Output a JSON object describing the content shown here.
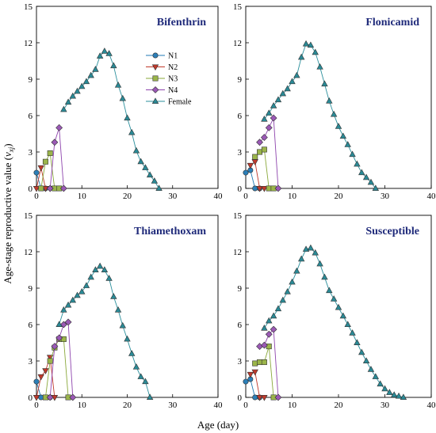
{
  "y_axis_title": {
    "prefix": "Age-stage reproductive value (",
    "var": "v",
    "sub": "xj",
    "suffix": ")"
  },
  "x_axis_title": "Age (day)",
  "legend": [
    "N1",
    "N2",
    "N3",
    "N4",
    "Female"
  ],
  "colors": {
    "N1": "#1f78b4",
    "N2": "#c0392b",
    "N3": "#8aa83a",
    "N4": "#8e44ad",
    "Female": "#2b8f9c",
    "N1_fill": "#2c7fb8",
    "N2_fill": "#c0392b",
    "N3_fill": "#9bb54a",
    "N4_fill": "#9b59b6",
    "Female_fill": "#2a8a96"
  },
  "chart_data": [
    {
      "type": "line",
      "title": "Bifenthrin",
      "xlim": [
        0,
        40
      ],
      "ylim": [
        0,
        15
      ],
      "xticks": [
        0,
        10,
        20,
        30,
        40
      ],
      "yticks": [
        0,
        3,
        6,
        9,
        12,
        15
      ],
      "series": [
        {
          "name": "N1",
          "marker": "circle",
          "points": [
            [
              0,
              1.3
            ],
            [
              1,
              0
            ],
            [
              2,
              0
            ]
          ]
        },
        {
          "name": "N2",
          "marker": "triangle-down",
          "points": [
            [
              0,
              0
            ],
            [
              1,
              1.7
            ],
            [
              2,
              0
            ],
            [
              3,
              0
            ]
          ]
        },
        {
          "name": "N3",
          "marker": "square",
          "points": [
            [
              1,
              0
            ],
            [
              2,
              2.2
            ],
            [
              3,
              2.9
            ],
            [
              4,
              0
            ],
            [
              5,
              0
            ]
          ]
        },
        {
          "name": "N4",
          "marker": "diamond",
          "points": [
            [
              3,
              0
            ],
            [
              4,
              3.8
            ],
            [
              5,
              5.0
            ],
            [
              6,
              0
            ]
          ]
        },
        {
          "name": "Female",
          "marker": "triangle-up",
          "points": [
            [
              6,
              6.5
            ],
            [
              7,
              7.1
            ],
            [
              8,
              7.6
            ],
            [
              9,
              8.0
            ],
            [
              10,
              8.4
            ],
            [
              11,
              8.8
            ],
            [
              12,
              9.3
            ],
            [
              13,
              9.8
            ],
            [
              14,
              10.9
            ],
            [
              15,
              11.3
            ],
            [
              16,
              11.1
            ],
            [
              17,
              10.1
            ],
            [
              18,
              8.5
            ],
            [
              19,
              7.4
            ],
            [
              20,
              5.8
            ],
            [
              21,
              4.6
            ],
            [
              22,
              3.1
            ],
            [
              23,
              2.2
            ],
            [
              24,
              1.7
            ],
            [
              25,
              1.1
            ],
            [
              26,
              0.6
            ],
            [
              27,
              0
            ]
          ]
        }
      ]
    },
    {
      "type": "line",
      "title": "Flonicamid",
      "xlim": [
        0,
        40
      ],
      "ylim": [
        0,
        15
      ],
      "xticks": [
        0,
        10,
        20,
        30,
        40
      ],
      "yticks": [
        0,
        3,
        6,
        9,
        12,
        15
      ],
      "series": [
        {
          "name": "N1",
          "marker": "circle",
          "points": [
            [
              0,
              1.3
            ],
            [
              1,
              1.5
            ],
            [
              2,
              0
            ],
            [
              3,
              0
            ]
          ]
        },
        {
          "name": "N2",
          "marker": "triangle-down",
          "points": [
            [
              1,
              1.9
            ],
            [
              2,
              2.2
            ],
            [
              3,
              0
            ],
            [
              4,
              0
            ]
          ]
        },
        {
          "name": "N3",
          "marker": "square",
          "points": [
            [
              2,
              2.6
            ],
            [
              3,
              3.0
            ],
            [
              4,
              3.2
            ],
            [
              5,
              0
            ],
            [
              6,
              0
            ]
          ]
        },
        {
          "name": "N4",
          "marker": "diamond",
          "points": [
            [
              3,
              3.8
            ],
            [
              4,
              4.2
            ],
            [
              5,
              5.0
            ],
            [
              6,
              5.8
            ],
            [
              7,
              0
            ]
          ]
        },
        {
          "name": "Female",
          "marker": "triangle-up",
          "points": [
            [
              4,
              5.7
            ],
            [
              5,
              6.2
            ],
            [
              6,
              6.8
            ],
            [
              7,
              7.3
            ],
            [
              8,
              7.8
            ],
            [
              9,
              8.2
            ],
            [
              10,
              8.8
            ],
            [
              11,
              9.3
            ],
            [
              12,
              10.8
            ],
            [
              13,
              11.9
            ],
            [
              14,
              11.8
            ],
            [
              15,
              11.2
            ],
            [
              16,
              10.0
            ],
            [
              17,
              8.6
            ],
            [
              18,
              7.2
            ],
            [
              19,
              6.1
            ],
            [
              20,
              5.1
            ],
            [
              21,
              4.3
            ],
            [
              22,
              3.6
            ],
            [
              23,
              2.8
            ],
            [
              24,
              2.0
            ],
            [
              25,
              1.3
            ],
            [
              26,
              0.9
            ],
            [
              27,
              0.5
            ],
            [
              28,
              0
            ]
          ]
        }
      ]
    },
    {
      "type": "line",
      "title": "Thiamethoxam",
      "xlim": [
        0,
        40
      ],
      "ylim": [
        0,
        15
      ],
      "xticks": [
        0,
        10,
        20,
        30,
        40
      ],
      "yticks": [
        0,
        3,
        6,
        9,
        12,
        15
      ],
      "series": [
        {
          "name": "N1",
          "marker": "circle",
          "points": [
            [
              0,
              1.3
            ],
            [
              1,
              0
            ],
            [
              2,
              0
            ],
            [
              3,
              0
            ]
          ]
        },
        {
          "name": "N2",
          "marker": "triangle-down",
          "points": [
            [
              0,
              0
            ],
            [
              1,
              1.7
            ],
            [
              2,
              2.2
            ],
            [
              3,
              3.3
            ],
            [
              4,
              0
            ]
          ]
        },
        {
          "name": "N3",
          "marker": "square",
          "points": [
            [
              2,
              0
            ],
            [
              3,
              3.0
            ],
            [
              4,
              4.1
            ],
            [
              5,
              4.8
            ],
            [
              6,
              4.8
            ],
            [
              7,
              0
            ]
          ]
        },
        {
          "name": "N4",
          "marker": "diamond",
          "points": [
            [
              3,
              0
            ],
            [
              4,
              4.2
            ],
            [
              5,
              4.9
            ],
            [
              6,
              6.0
            ],
            [
              7,
              6.2
            ],
            [
              8,
              0
            ]
          ]
        },
        {
          "name": "Female",
          "marker": "triangle-up",
          "points": [
            [
              5,
              6.0
            ],
            [
              6,
              7.2
            ],
            [
              7,
              7.6
            ],
            [
              8,
              8.0
            ],
            [
              9,
              8.4
            ],
            [
              10,
              8.7
            ],
            [
              11,
              9.2
            ],
            [
              12,
              9.9
            ],
            [
              13,
              10.5
            ],
            [
              14,
              10.8
            ],
            [
              15,
              10.5
            ],
            [
              16,
              9.8
            ],
            [
              17,
              8.3
            ],
            [
              18,
              7.2
            ],
            [
              19,
              5.9
            ],
            [
              20,
              4.8
            ],
            [
              21,
              3.6
            ],
            [
              22,
              2.5
            ],
            [
              23,
              1.7
            ],
            [
              24,
              1.3
            ],
            [
              25,
              0
            ]
          ]
        }
      ]
    },
    {
      "type": "line",
      "title": "Susceptible",
      "xlim": [
        0,
        40
      ],
      "ylim": [
        0,
        15
      ],
      "xticks": [
        0,
        10,
        20,
        30,
        40
      ],
      "yticks": [
        0,
        3,
        6,
        9,
        12,
        15
      ],
      "series": [
        {
          "name": "N1",
          "marker": "circle",
          "points": [
            [
              0,
              1.3
            ],
            [
              1,
              1.5
            ],
            [
              2,
              0
            ],
            [
              3,
              0
            ]
          ]
        },
        {
          "name": "N2",
          "marker": "triangle-down",
          "points": [
            [
              1,
              1.9
            ],
            [
              2,
              2.1
            ],
            [
              3,
              0
            ],
            [
              4,
              0
            ]
          ]
        },
        {
          "name": "N3",
          "marker": "square",
          "points": [
            [
              2,
              2.8
            ],
            [
              3,
              2.9
            ],
            [
              4,
              2.9
            ],
            [
              5,
              4.2
            ],
            [
              6,
              0
            ]
          ]
        },
        {
          "name": "N4",
          "marker": "diamond",
          "points": [
            [
              3,
              4.2
            ],
            [
              4,
              4.3
            ],
            [
              5,
              5.2
            ],
            [
              6,
              5.6
            ],
            [
              7,
              0
            ]
          ]
        },
        {
          "name": "Female",
          "marker": "triangle-up",
          "points": [
            [
              4,
              5.7
            ],
            [
              5,
              6.3
            ],
            [
              6,
              6.7
            ],
            [
              7,
              7.3
            ],
            [
              8,
              8.0
            ],
            [
              9,
              8.7
            ],
            [
              10,
              9.5
            ],
            [
              11,
              10.4
            ],
            [
              12,
              11.4
            ],
            [
              13,
              12.2
            ],
            [
              14,
              12.3
            ],
            [
              15,
              11.9
            ],
            [
              16,
              11.0
            ],
            [
              17,
              9.9
            ],
            [
              18,
              8.8
            ],
            [
              19,
              8.1
            ],
            [
              20,
              7.4
            ],
            [
              21,
              6.7
            ],
            [
              22,
              6.0
            ],
            [
              23,
              5.3
            ],
            [
              24,
              4.5
            ],
            [
              25,
              3.7
            ],
            [
              26,
              3.0
            ],
            [
              27,
              2.3
            ],
            [
              28,
              1.7
            ],
            [
              29,
              1.1
            ],
            [
              30,
              0.7
            ],
            [
              31,
              0.4
            ],
            [
              32,
              0.2
            ],
            [
              33,
              0.1
            ],
            [
              34,
              0
            ]
          ]
        }
      ]
    }
  ]
}
